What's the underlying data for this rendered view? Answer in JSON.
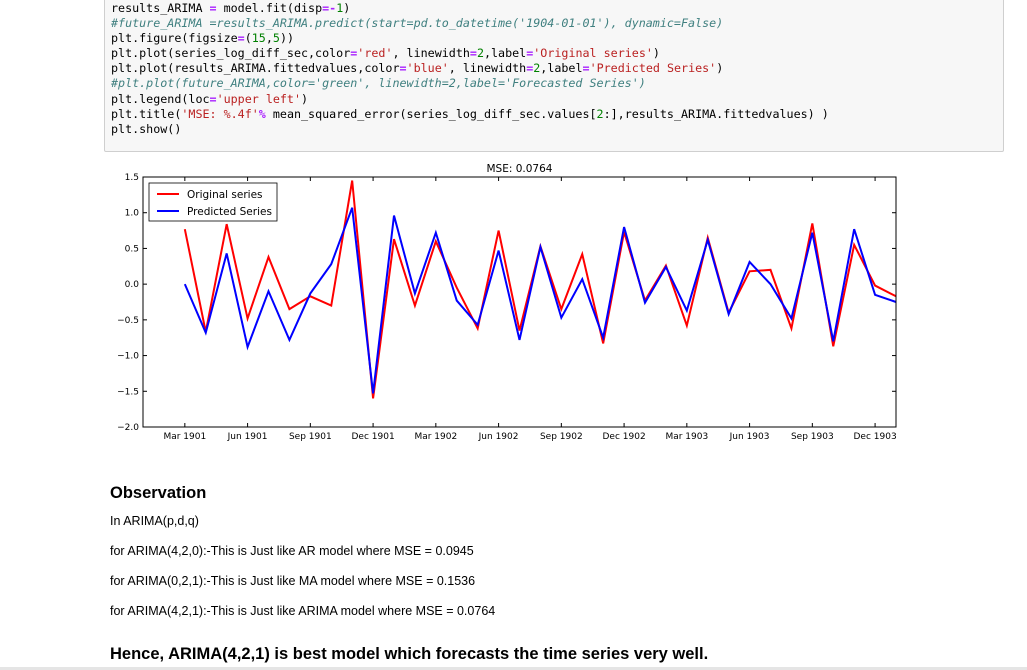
{
  "code": {
    "lines": [
      [
        {
          "t": "results_ARIMA ",
          "c": ""
        },
        {
          "t": "=",
          "c": "op"
        },
        {
          "t": " model.fit(disp",
          "c": ""
        },
        {
          "t": "=-",
          "c": "op"
        },
        {
          "t": "1",
          "c": "num"
        },
        {
          "t": ")",
          "c": ""
        }
      ],
      [
        {
          "t": "#future_ARIMA =results_ARIMA.predict(start=pd.to_datetime('1904-01-01'), dynamic=False)",
          "c": "cm"
        }
      ],
      [
        {
          "t": "plt.figure(figsize",
          "c": ""
        },
        {
          "t": "=",
          "c": "op"
        },
        {
          "t": "(",
          "c": ""
        },
        {
          "t": "15",
          "c": "num"
        },
        {
          "t": ",",
          "c": ""
        },
        {
          "t": "5",
          "c": "num"
        },
        {
          "t": "))",
          "c": ""
        }
      ],
      [
        {
          "t": "plt.plot(series_log_diff_sec,color",
          "c": ""
        },
        {
          "t": "=",
          "c": "op"
        },
        {
          "t": "'red'",
          "c": "str"
        },
        {
          "t": ", linewidth",
          "c": ""
        },
        {
          "t": "=",
          "c": "op"
        },
        {
          "t": "2",
          "c": "num"
        },
        {
          "t": ",label",
          "c": ""
        },
        {
          "t": "=",
          "c": "op"
        },
        {
          "t": "'Original series'",
          "c": "str"
        },
        {
          "t": ")",
          "c": ""
        }
      ],
      [
        {
          "t": "plt.plot(results_ARIMA.fittedvalues,color",
          "c": ""
        },
        {
          "t": "=",
          "c": "op"
        },
        {
          "t": "'blue'",
          "c": "str"
        },
        {
          "t": ", linewidth",
          "c": ""
        },
        {
          "t": "=",
          "c": "op"
        },
        {
          "t": "2",
          "c": "num"
        },
        {
          "t": ",label",
          "c": ""
        },
        {
          "t": "=",
          "c": "op"
        },
        {
          "t": "'Predicted Series'",
          "c": "str"
        },
        {
          "t": ")",
          "c": ""
        }
      ],
      [
        {
          "t": "#plt.plot(future_ARIMA,color='green', linewidth=2,label='Forecasted Series')",
          "c": "cm"
        }
      ],
      [
        {
          "t": "plt.legend(loc",
          "c": ""
        },
        {
          "t": "=",
          "c": "op"
        },
        {
          "t": "'upper left'",
          "c": "str"
        },
        {
          "t": ")",
          "c": ""
        }
      ],
      [
        {
          "t": "plt.title(",
          "c": ""
        },
        {
          "t": "'MSE: %.4f'",
          "c": "str"
        },
        {
          "t": "%",
          "c": "op"
        },
        {
          "t": " mean_squared_error(series_log_diff_sec.values[",
          "c": ""
        },
        {
          "t": "2",
          "c": "num"
        },
        {
          "t": ":],results_ARIMA.fittedvalues) )",
          "c": ""
        }
      ],
      [
        {
          "t": "plt.show()",
          "c": ""
        }
      ]
    ]
  },
  "chart_data": {
    "type": "line",
    "title": "MSE: 0.0764",
    "xlabel": "",
    "ylabel": "",
    "ylim": [
      -2.0,
      1.5
    ],
    "yticks": [
      "1.5",
      "1.0",
      "0.5",
      "0.0",
      "−0.5",
      "−1.0",
      "−1.5",
      "−2.0"
    ],
    "ytick_values": [
      1.5,
      1.0,
      0.5,
      0.0,
      -0.5,
      -1.0,
      -1.5,
      -2.0
    ],
    "xlim": [
      0,
      36
    ],
    "xticks": [
      "Mar 1901",
      "Jun 1901",
      "Sep 1901",
      "Dec 1901",
      "Mar 1902",
      "Jun 1902",
      "Sep 1902",
      "Dec 1902",
      "Mar 1903",
      "Jun 1903",
      "Sep 1903",
      "Dec 1903"
    ],
    "xtick_values": [
      2,
      5,
      8,
      11,
      14,
      17,
      20,
      23,
      26,
      29,
      32,
      35
    ],
    "grid": false,
    "legend": "upper-left",
    "series": [
      {
        "name": "Original series",
        "color": "#ff0000",
        "x": [
          2,
          3,
          4,
          5,
          6,
          7,
          8,
          9,
          10,
          11,
          12,
          13,
          14,
          15,
          16,
          17,
          18,
          19,
          20,
          21,
          22,
          23,
          24,
          25,
          26,
          27,
          28,
          29,
          30,
          31,
          32,
          33,
          34,
          35,
          36
        ],
        "values": [
          0.77,
          -0.67,
          0.84,
          -0.48,
          0.38,
          -0.35,
          -0.17,
          -0.3,
          1.45,
          -1.6,
          0.63,
          -0.3,
          0.6,
          -0.05,
          -0.62,
          0.75,
          -0.65,
          0.53,
          -0.35,
          0.42,
          -0.83,
          0.73,
          -0.23,
          0.26,
          -0.58,
          0.65,
          -0.4,
          0.18,
          0.2,
          -0.62,
          0.85,
          -0.87,
          0.55,
          -0.02,
          -0.17
        ]
      },
      {
        "name": "Predicted Series",
        "color": "#0000ff",
        "x": [
          2,
          3,
          4,
          5,
          6,
          7,
          8,
          9,
          10,
          11,
          12,
          13,
          14,
          15,
          16,
          17,
          18,
          19,
          20,
          21,
          22,
          23,
          24,
          25,
          26,
          27,
          28,
          29,
          30,
          31,
          32,
          33,
          34,
          35,
          36
        ],
        "values": [
          0.0,
          -0.68,
          0.43,
          -0.88,
          -0.1,
          -0.78,
          -0.13,
          0.28,
          1.07,
          -1.53,
          0.96,
          -0.13,
          0.72,
          -0.23,
          -0.57,
          0.47,
          -0.78,
          0.52,
          -0.47,
          0.07,
          -0.75,
          0.8,
          -0.26,
          0.24,
          -0.37,
          0.62,
          -0.42,
          0.31,
          0.0,
          -0.48,
          0.72,
          -0.8,
          0.77,
          -0.15,
          -0.25
        ]
      }
    ]
  },
  "observation": {
    "heading": "Observation",
    "intro": "In ARIMA(p,d,q)",
    "items": [
      "for ARIMA(4,2,0):-This is Just like AR model where MSE = 0.0945",
      "for ARIMA(0,2,1):-This is Just like MA model where MSE = 0.1536",
      "for ARIMA(4,2,1):-This is Just like ARIMA model where MSE = 0.0764"
    ],
    "conclusion": "Hence, ARIMA(4,2,1) is best model which forecasts the time series very well."
  }
}
